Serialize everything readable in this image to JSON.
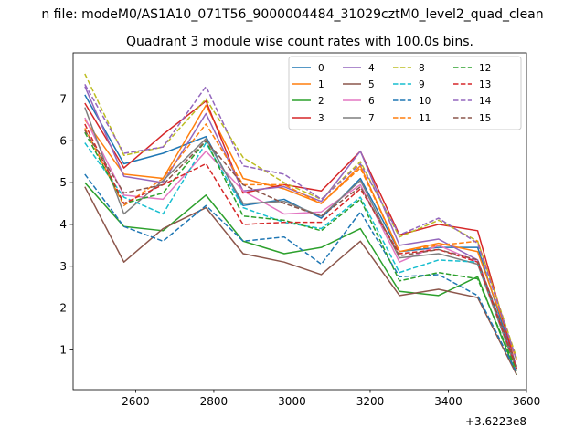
{
  "chart_data": {
    "type": "line",
    "suptitle": "n file: modeM0/AS1A10_071T56_9000004484_31029cztM0_level2_quad_clean",
    "title": "Quadrant 3 module wise count rates with 100.0s bins.",
    "xlabel": "",
    "ylabel": "",
    "x_offset_label": "+3.6223e8",
    "x": [
      2470,
      2570,
      2670,
      2780,
      2875,
      2980,
      3075,
      3175,
      3275,
      3375,
      3475,
      3575
    ],
    "xlim": [
      2440,
      3600
    ],
    "ylim": [
      0.05,
      8.1
    ],
    "xticks": [
      2600,
      2800,
      3000,
      3200,
      3400,
      3600
    ],
    "xtick_labels": [
      "2600",
      "2800",
      "3000",
      "3200",
      "3400",
      "3600"
    ],
    "yticks": [
      1,
      2,
      3,
      4,
      5,
      6,
      7
    ],
    "ytick_labels": [
      "1",
      "2",
      "3",
      "4",
      "5",
      "6",
      "7"
    ],
    "grid": false,
    "legend_position": "top-right",
    "legend_columns": 4,
    "series": [
      {
        "name": "0",
        "color": "#1f77b4",
        "dash": "solid",
        "values": [
          7.1,
          5.45,
          5.7,
          6.1,
          4.45,
          4.6,
          4.15,
          5.1,
          3.35,
          3.45,
          3.45,
          0.55
        ]
      },
      {
        "name": "1",
        "color": "#ff7f0e",
        "dash": "solid",
        "values": [
          6.5,
          5.2,
          5.1,
          6.85,
          5.1,
          4.85,
          4.5,
          5.4,
          3.35,
          3.55,
          3.35,
          0.75
        ]
      },
      {
        "name": "2",
        "color": "#2ca02c",
        "dash": "solid",
        "values": [
          5.0,
          3.95,
          3.85,
          4.7,
          3.6,
          3.3,
          3.45,
          3.9,
          2.4,
          2.3,
          2.75,
          0.4
        ]
      },
      {
        "name": "3",
        "color": "#d62728",
        "dash": "solid",
        "values": [
          6.9,
          5.35,
          6.15,
          6.95,
          4.75,
          4.95,
          4.8,
          5.75,
          3.75,
          4.0,
          3.85,
          0.55
        ]
      },
      {
        "name": "4",
        "color": "#9467bd",
        "dash": "solid",
        "values": [
          7.3,
          5.15,
          5.0,
          6.65,
          4.8,
          4.9,
          4.55,
          5.75,
          3.5,
          3.65,
          3.15,
          0.6
        ]
      },
      {
        "name": "5",
        "color": "#8c564b",
        "dash": "solid",
        "values": [
          4.9,
          3.1,
          3.9,
          4.4,
          3.3,
          3.1,
          2.8,
          3.6,
          2.3,
          2.45,
          2.25,
          0.4
        ]
      },
      {
        "name": "6",
        "color": "#e377c2",
        "dash": "solid",
        "values": [
          6.55,
          4.7,
          4.6,
          5.75,
          4.8,
          4.25,
          4.3,
          4.95,
          3.1,
          3.5,
          3.1,
          0.5
        ]
      },
      {
        "name": "7",
        "color": "#7f7f7f",
        "dash": "solid",
        "values": [
          6.8,
          4.25,
          5.05,
          6.05,
          4.5,
          4.55,
          4.2,
          5.05,
          3.2,
          3.3,
          3.05,
          0.5
        ]
      },
      {
        "name": "8",
        "color": "#bcbd22",
        "dash": "dashed",
        "values": [
          7.6,
          5.65,
          5.85,
          7.0,
          5.6,
          5.0,
          4.6,
          5.5,
          3.7,
          4.1,
          3.6,
          0.8
        ]
      },
      {
        "name": "9",
        "color": "#17becf",
        "dash": "dashed",
        "values": [
          5.95,
          4.65,
          4.25,
          5.95,
          4.4,
          4.05,
          3.9,
          4.65,
          2.85,
          3.15,
          3.1,
          0.6
        ]
      },
      {
        "name": "10",
        "color": "#1f77b4",
        "dash": "dashed",
        "values": [
          5.2,
          3.95,
          3.6,
          4.45,
          3.6,
          3.7,
          3.05,
          4.3,
          2.75,
          2.8,
          2.3,
          0.45
        ]
      },
      {
        "name": "11",
        "color": "#ff7f0e",
        "dash": "dashed",
        "values": [
          6.3,
          4.45,
          5.1,
          6.4,
          4.95,
          4.95,
          4.5,
          5.35,
          3.35,
          3.5,
          3.6,
          0.75
        ]
      },
      {
        "name": "12",
        "color": "#2ca02c",
        "dash": "dashed",
        "values": [
          6.2,
          4.5,
          4.75,
          6.0,
          4.2,
          4.1,
          3.85,
          4.6,
          2.65,
          2.85,
          2.7,
          0.5
        ]
      },
      {
        "name": "13",
        "color": "#d62728",
        "dash": "dashed",
        "values": [
          6.4,
          4.5,
          4.95,
          5.45,
          4.0,
          4.05,
          4.05,
          4.85,
          3.3,
          3.4,
          3.1,
          0.55
        ]
      },
      {
        "name": "14",
        "color": "#9467bd",
        "dash": "dashed",
        "values": [
          7.35,
          5.7,
          5.85,
          7.3,
          5.4,
          5.2,
          4.6,
          5.45,
          3.75,
          4.15,
          3.55,
          0.75
        ]
      },
      {
        "name": "15",
        "color": "#8c564b",
        "dash": "dashed",
        "values": [
          6.25,
          4.75,
          4.95,
          6.0,
          4.95,
          4.5,
          4.2,
          4.9,
          3.25,
          3.4,
          3.15,
          0.6
        ]
      }
    ]
  }
}
